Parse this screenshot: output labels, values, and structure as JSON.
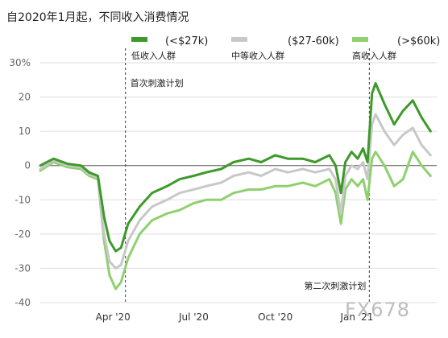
{
  "chart_data": {
    "type": "line",
    "title": "自2020年1月起，不同收入消费情况",
    "ylim": [
      -40,
      30
    ],
    "yticks": [
      "30%",
      "20",
      "10",
      "0",
      "-10",
      "-20",
      "-30",
      "-40"
    ],
    "x_ticks": [
      "Apr '20",
      "Jul '20",
      "Oct '20",
      "Jan '21"
    ],
    "grid": "horizontal",
    "legend_position": "top",
    "x_start": "2020-01-10",
    "x_end": "2021-04-01",
    "series": [
      {
        "name": "(<$27k)",
        "group": "低收入人群",
        "color": "#3d9a2a",
        "points": [
          [
            "2020-01-10",
            0.0
          ],
          [
            "2020-01-25",
            2.0
          ],
          [
            "2020-02-10",
            0.5
          ],
          [
            "2020-02-25",
            0.0
          ],
          [
            "2020-03-05",
            -2.0
          ],
          [
            "2020-03-15",
            -3.0
          ],
          [
            "2020-03-22",
            -15.0
          ],
          [
            "2020-03-28",
            -22.0
          ],
          [
            "2020-04-04",
            -25.0
          ],
          [
            "2020-04-10",
            -24.0
          ],
          [
            "2020-04-18",
            -17.0
          ],
          [
            "2020-05-01",
            -12.0
          ],
          [
            "2020-05-15",
            -8.0
          ],
          [
            "2020-06-01",
            -6.0
          ],
          [
            "2020-06-15",
            -4.0
          ],
          [
            "2020-07-01",
            -3.0
          ],
          [
            "2020-07-15",
            -2.0
          ],
          [
            "2020-08-01",
            -1.0
          ],
          [
            "2020-08-15",
            1.0
          ],
          [
            "2020-09-01",
            2.0
          ],
          [
            "2020-09-15",
            1.0
          ],
          [
            "2020-10-01",
            3.0
          ],
          [
            "2020-10-15",
            2.0
          ],
          [
            "2020-11-01",
            2.0
          ],
          [
            "2020-11-15",
            1.0
          ],
          [
            "2020-12-01",
            3.0
          ],
          [
            "2020-12-08",
            0.0
          ],
          [
            "2020-12-14",
            -8.0
          ],
          [
            "2020-12-19",
            1.0
          ],
          [
            "2020-12-26",
            4.0
          ],
          [
            "2021-01-02",
            2.0
          ],
          [
            "2021-01-08",
            5.0
          ],
          [
            "2021-01-13",
            1.0
          ],
          [
            "2021-01-18",
            21.0
          ],
          [
            "2021-01-22",
            24.0
          ],
          [
            "2021-02-01",
            18.0
          ],
          [
            "2021-02-12",
            12.0
          ],
          [
            "2021-02-22",
            16.0
          ],
          [
            "2021-03-05",
            19.0
          ],
          [
            "2021-03-15",
            14.0
          ],
          [
            "2021-03-25",
            10.0
          ]
        ]
      },
      {
        "name": "($27-60k)",
        "group": "中等收入人群",
        "color": "#c8c8c8",
        "points": [
          [
            "2020-01-10",
            -1.0
          ],
          [
            "2020-01-25",
            1.5
          ],
          [
            "2020-02-10",
            0.0
          ],
          [
            "2020-02-25",
            -0.5
          ],
          [
            "2020-03-05",
            -2.5
          ],
          [
            "2020-03-15",
            -3.5
          ],
          [
            "2020-03-22",
            -20.0
          ],
          [
            "2020-03-28",
            -28.0
          ],
          [
            "2020-04-04",
            -30.0
          ],
          [
            "2020-04-10",
            -29.0
          ],
          [
            "2020-04-18",
            -22.0
          ],
          [
            "2020-05-01",
            -16.0
          ],
          [
            "2020-05-15",
            -12.0
          ],
          [
            "2020-06-01",
            -10.0
          ],
          [
            "2020-06-15",
            -8.0
          ],
          [
            "2020-07-01",
            -7.0
          ],
          [
            "2020-07-15",
            -6.0
          ],
          [
            "2020-08-01",
            -5.0
          ],
          [
            "2020-08-15",
            -3.0
          ],
          [
            "2020-09-01",
            -2.0
          ],
          [
            "2020-09-15",
            -3.0
          ],
          [
            "2020-10-01",
            -1.0
          ],
          [
            "2020-10-15",
            -2.0
          ],
          [
            "2020-11-01",
            -1.0
          ],
          [
            "2020-11-15",
            -2.0
          ],
          [
            "2020-12-01",
            -1.0
          ],
          [
            "2020-12-08",
            -4.0
          ],
          [
            "2020-12-14",
            -14.0
          ],
          [
            "2020-12-19",
            -3.0
          ],
          [
            "2020-12-26",
            0.0
          ],
          [
            "2021-01-02",
            -1.0
          ],
          [
            "2021-01-08",
            1.0
          ],
          [
            "2021-01-13",
            -4.0
          ],
          [
            "2021-01-18",
            12.0
          ],
          [
            "2021-01-22",
            15.0
          ],
          [
            "2021-02-01",
            10.0
          ],
          [
            "2021-02-12",
            6.0
          ],
          [
            "2021-02-22",
            9.0
          ],
          [
            "2021-03-05",
            11.0
          ],
          [
            "2021-03-15",
            6.0
          ],
          [
            "2021-03-25",
            3.0
          ]
        ]
      },
      {
        "name": "(>$60k)",
        "group": "高收入人群",
        "color": "#8fd06f",
        "points": [
          [
            "2020-01-10",
            -1.5
          ],
          [
            "2020-01-25",
            1.0
          ],
          [
            "2020-02-10",
            -0.5
          ],
          [
            "2020-02-25",
            -1.0
          ],
          [
            "2020-03-05",
            -3.0
          ],
          [
            "2020-03-15",
            -4.0
          ],
          [
            "2020-03-22",
            -22.0
          ],
          [
            "2020-03-28",
            -32.0
          ],
          [
            "2020-04-04",
            -36.0
          ],
          [
            "2020-04-10",
            -34.0
          ],
          [
            "2020-04-18",
            -27.0
          ],
          [
            "2020-05-01",
            -20.0
          ],
          [
            "2020-05-15",
            -16.0
          ],
          [
            "2020-06-01",
            -14.0
          ],
          [
            "2020-06-15",
            -13.0
          ],
          [
            "2020-07-01",
            -11.0
          ],
          [
            "2020-07-15",
            -10.0
          ],
          [
            "2020-08-01",
            -10.0
          ],
          [
            "2020-08-15",
            -8.0
          ],
          [
            "2020-09-01",
            -7.0
          ],
          [
            "2020-09-15",
            -7.0
          ],
          [
            "2020-10-01",
            -6.0
          ],
          [
            "2020-10-15",
            -6.0
          ],
          [
            "2020-11-01",
            -5.0
          ],
          [
            "2020-11-15",
            -6.0
          ],
          [
            "2020-12-01",
            -4.0
          ],
          [
            "2020-12-08",
            -8.0
          ],
          [
            "2020-12-14",
            -17.0
          ],
          [
            "2020-12-19",
            -7.0
          ],
          [
            "2020-12-26",
            -4.0
          ],
          [
            "2021-01-02",
            -6.0
          ],
          [
            "2021-01-08",
            -4.0
          ],
          [
            "2021-01-13",
            -10.0
          ],
          [
            "2021-01-18",
            2.0
          ],
          [
            "2021-01-22",
            4.0
          ],
          [
            "2021-02-01",
            0.0
          ],
          [
            "2021-02-12",
            -6.0
          ],
          [
            "2021-02-22",
            -4.0
          ],
          [
            "2021-03-05",
            4.0
          ],
          [
            "2021-03-15",
            0.0
          ],
          [
            "2021-03-25",
            -3.0
          ]
        ]
      }
    ],
    "annotations": [
      {
        "date": "2020-04-15",
        "label": "首次刺激计划"
      },
      {
        "date": "2021-01-15",
        "label": "第二次刺激计划"
      }
    ]
  },
  "watermark": "FX678"
}
